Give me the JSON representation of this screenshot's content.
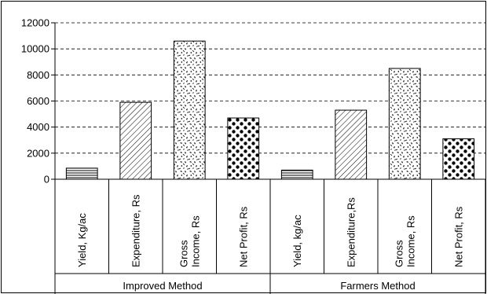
{
  "chart_data": {
    "type": "bar",
    "ylim": [
      0,
      12000
    ],
    "yticks": [
      0,
      2000,
      4000,
      6000,
      8000,
      10000,
      12000
    ],
    "ytick_labels": [
      "0",
      "2000",
      "4000",
      "6000",
      "8000",
      "10000",
      "12000"
    ],
    "grid": "horizontal-dashed",
    "groups": [
      {
        "name": "Improved Method",
        "bars": [
          {
            "category": "Yield, Kg/ac",
            "value": 850,
            "pattern": "horizontal-lines"
          },
          {
            "category": "Expenditure, Rs",
            "value": 5900,
            "pattern": "diagonal-hatch"
          },
          {
            "category": "Gross\nIncome, Rs",
            "value": 10600,
            "pattern": "confetti"
          },
          {
            "category": "Net Profit, Rs",
            "value": 4700,
            "pattern": "dots"
          }
        ]
      },
      {
        "name": "Farmers Method",
        "bars": [
          {
            "category": "Yield, kg/ac",
            "value": 700,
            "pattern": "horizontal-lines"
          },
          {
            "category": "Expenditure,Rs",
            "value": 5300,
            "pattern": "diagonal-hatch"
          },
          {
            "category": "Gross\nIncome, Rs",
            "value": 8500,
            "pattern": "confetti"
          },
          {
            "category": "Net Profit, Rs",
            "value": 3100,
            "pattern": "dots"
          }
        ]
      }
    ]
  }
}
